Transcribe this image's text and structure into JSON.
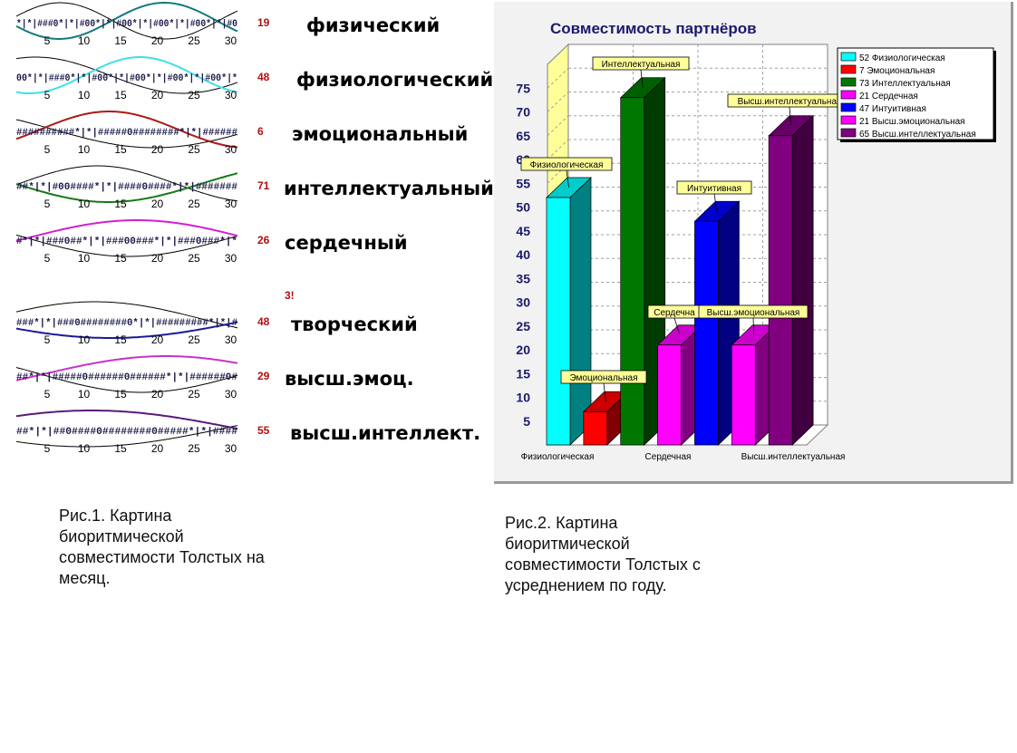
{
  "fig1": {
    "ticks": [
      "5",
      "10",
      "15",
      "20",
      "25",
      "30"
    ],
    "rows": [
      {
        "label": "физический",
        "value": "19",
        "hash_text": "*|*|###0*|*|#00*|*|#00*|*|#00*|*|#00*|*|#0",
        "color": "#137a7a"
      },
      {
        "label": "физиологический",
        "value": "48",
        "hash_text": "00*|*|###0*|*|#00*|*|#00*|*|#00*|*|#00*|*",
        "color": "#3fe0e8"
      },
      {
        "label": "эмоциональный",
        "value": "6",
        "hash_text": "##########*|*|#####0########*|*|######",
        "color": "#b01818"
      },
      {
        "label": "интеллектуальный",
        "value": "71",
        "hash_text": "##*|*|#00####*|*|####0####*|*|#######",
        "color": "#177a17"
      },
      {
        "label": "сердечный",
        "value": "26",
        "hash_text": "#*|*|###0##*|*|###00###*|*|###0###*|*",
        "color": "#d020d0"
      },
      {
        "label": "творческий",
        "value": "48",
        "hash_text": "###*|*|###0########0*|*|#########*|*|#",
        "color": "#1a1a9a"
      },
      {
        "label": "высш.эмоц.",
        "value": "29",
        "hash_text": "##*|*|#####0######0######*|*|######0#",
        "color": "#c832c8"
      },
      {
        "label": "высш.интеллект.",
        "value": "55",
        "hash_text": "##*|*|##0####0########0#####*|*|####",
        "color": "#5a1a7a"
      }
    ],
    "stray_mark": "3!",
    "caption": "Рис.1. Картина\nбиоритмической\nсовместимости Толстых на\nмесяц."
  },
  "chart_data": {
    "type": "bar",
    "title": "Совместимость партнёров",
    "ylim": [
      0,
      80
    ],
    "yticks": [
      5,
      10,
      15,
      20,
      25,
      30,
      35,
      40,
      45,
      50,
      55,
      60,
      65,
      70,
      75
    ],
    "grid": true,
    "legend_position": "top-right",
    "categories": [
      "Физиологическая",
      "Эмоциональная",
      "Интеллектуальная",
      "Сердечная",
      "Интуитивная",
      "Высш.эмоциональная",
      "Высш.интеллектуальная"
    ],
    "values": [
      52,
      7,
      73,
      21,
      47,
      21,
      65
    ],
    "colors": [
      "#00ffff",
      "#ff0000",
      "#007800",
      "#ff00ff",
      "#0000ff",
      "#ff00ff",
      "#800080"
    ],
    "legend": [
      "52 Физиологическая",
      "7 Эмоциональная",
      "73 Интеллектуальная",
      "21 Сердечная",
      "47 Интуитивная",
      "21 Высш.эмоциональная",
      "65 Высш.интеллектуальная"
    ],
    "x_labels": [
      "Физиологическая",
      "Сердечная",
      "Высш.интеллектуальная"
    ],
    "bar_labels": [
      "Физиологическая",
      "Эмоциональная",
      "Интеллектуальная",
      "Сердечна",
      "Интуитивная",
      "Высш.эмоциональная",
      "Высш.интеллектуальная"
    ]
  },
  "fig2": {
    "caption": "Рис.2. Картина\nбиоритмической\nсовместимости Толстых с\nусреднением по году."
  }
}
